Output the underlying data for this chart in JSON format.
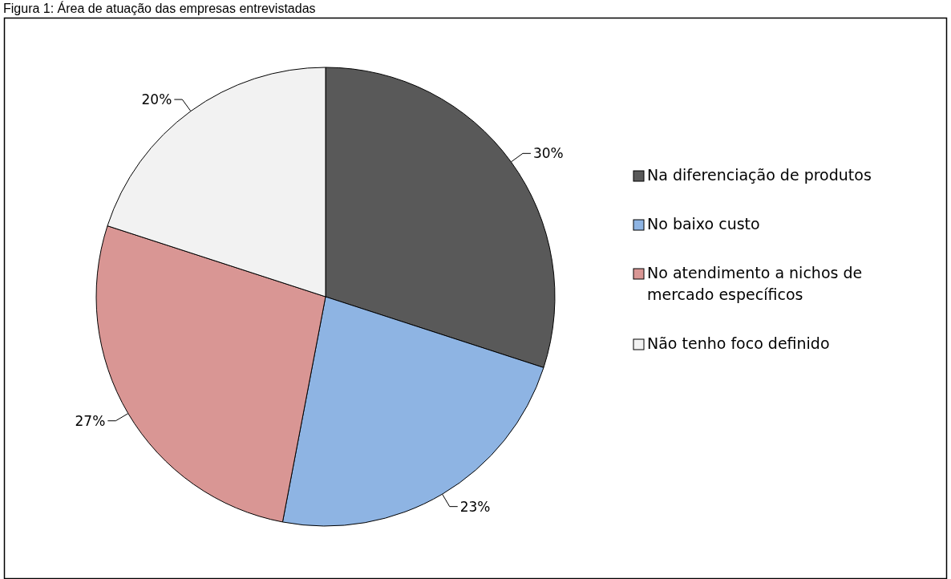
{
  "chart_data": {
    "type": "pie",
    "title": "Figura 1: Área de atuação das empresas entrevistadas",
    "categories": [
      "Na diferenciação de produtos",
      "No baixo custo",
      "No atendimento a nichos de mercado específicos",
      "Não tenho foco definido"
    ],
    "values": [
      30,
      23,
      27,
      20
    ],
    "colors": [
      "#595959",
      "#8eb4e3",
      "#d99694",
      "#f2f2f2"
    ],
    "value_labels": [
      "30%",
      "23%",
      "27%",
      "20%"
    ],
    "legend": "right"
  }
}
